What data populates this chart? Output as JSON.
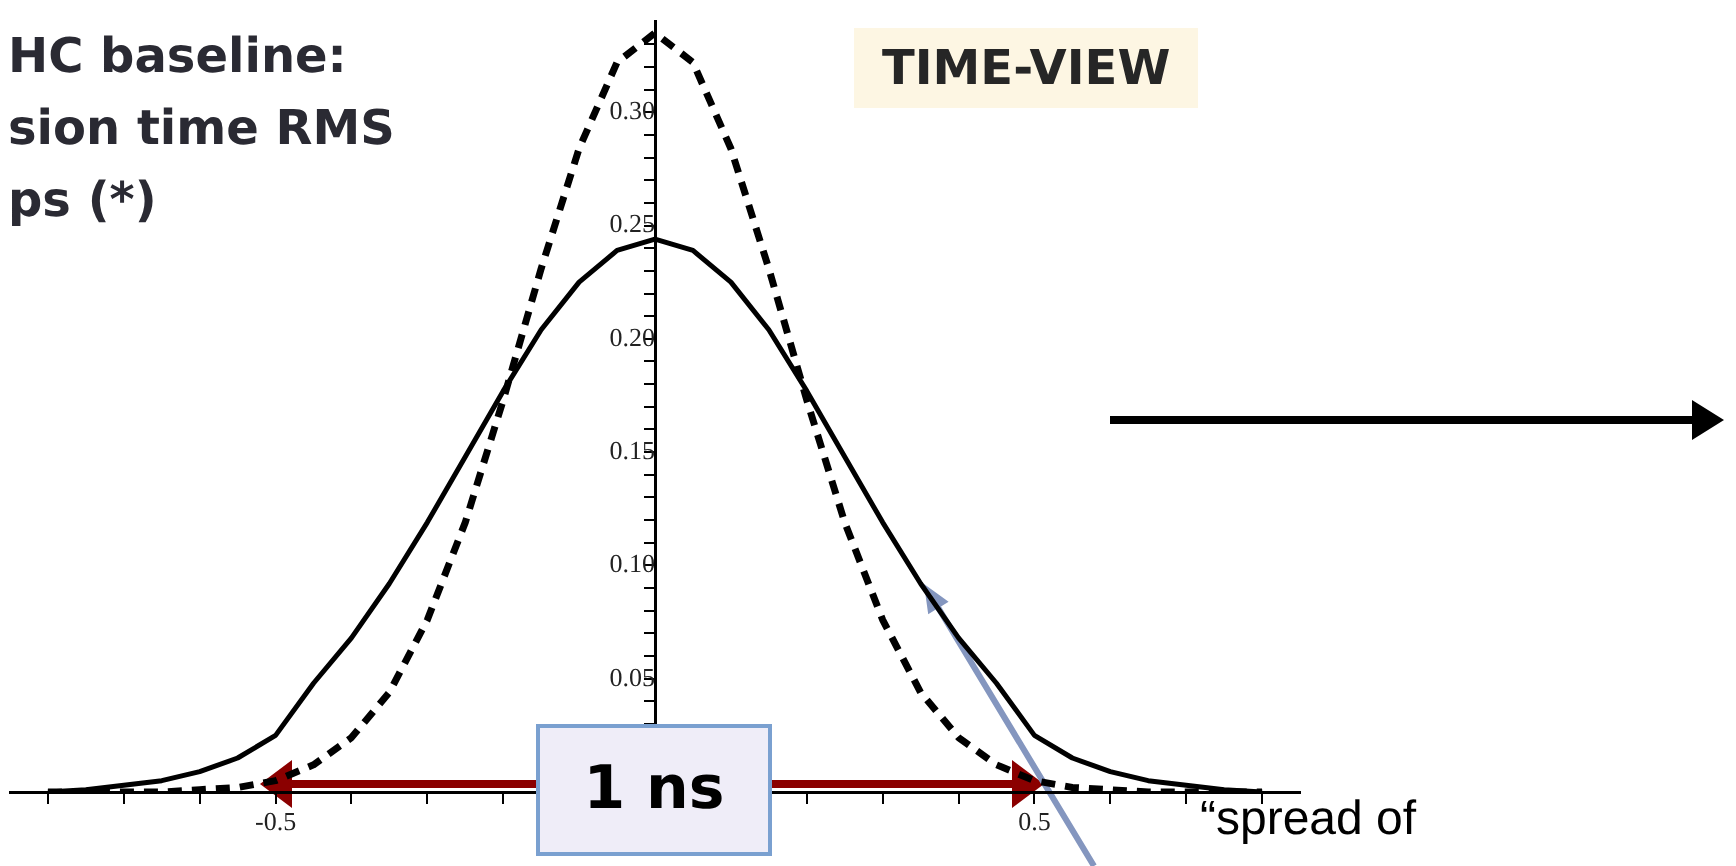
{
  "chart_data": {
    "type": "line",
    "x": [
      -0.8,
      -0.75,
      -0.7,
      -0.65,
      -0.6,
      -0.55,
      -0.5,
      -0.45,
      -0.4,
      -0.35,
      -0.3,
      -0.25,
      -0.2,
      -0.15,
      -0.1,
      -0.05,
      0,
      0.05,
      0.1,
      0.15,
      0.2,
      0.25,
      0.3,
      0.35,
      0.4,
      0.45,
      0.5,
      0.55,
      0.6,
      0.65,
      0.7,
      0.75,
      0.8
    ],
    "series": [
      {
        "color": "#000000",
        "line_style": "solid",
        "values": [
          0,
          0.001,
          0.003,
          0.005,
          0.009,
          0.015,
          0.025,
          0.048,
          0.068,
          0.092,
          0.119,
          0.148,
          0.177,
          0.204,
          0.225,
          0.239,
          0.244,
          0.239,
          0.225,
          0.204,
          0.177,
          0.148,
          0.119,
          0.092,
          0.068,
          0.048,
          0.025,
          0.015,
          0.009,
          0.005,
          0.003,
          0.001,
          0
        ]
      },
      {
        "color": "#000000",
        "line_style": "dashed",
        "values": [
          0,
          0,
          0,
          0,
          0.001,
          0.002,
          0.005,
          0.012,
          0.024,
          0.044,
          0.076,
          0.119,
          0.173,
          0.231,
          0.284,
          0.322,
          0.335,
          0.322,
          0.284,
          0.231,
          0.173,
          0.119,
          0.076,
          0.044,
          0.024,
          0.012,
          0.005,
          0.002,
          0.001,
          0,
          0,
          0,
          0
        ]
      }
    ],
    "xlim": [
      -0.85,
      0.85
    ],
    "xticks": [
      {
        "value": -0.8,
        "label": null
      },
      {
        "value": -0.7,
        "label": null
      },
      {
        "value": -0.6,
        "label": null
      },
      {
        "value": -0.5,
        "label": "-0.5"
      },
      {
        "value": -0.4,
        "label": null
      },
      {
        "value": -0.3,
        "label": null
      },
      {
        "value": -0.2,
        "label": null
      },
      {
        "value": -0.1,
        "label": null
      },
      {
        "value": 0.1,
        "label": null
      },
      {
        "value": 0.2,
        "label": null
      },
      {
        "value": 0.3,
        "label": null
      },
      {
        "value": 0.4,
        "label": null
      },
      {
        "value": 0.5,
        "label": "0.5"
      },
      {
        "value": 0.6,
        "label": null
      },
      {
        "value": 0.7,
        "label": null
      },
      {
        "value": 0.8,
        "label": null
      }
    ],
    "ylim": [
      0,
      0.34
    ],
    "yticks": [
      {
        "value": 0.01,
        "label": null
      },
      {
        "value": 0.02,
        "label": null
      },
      {
        "value": 0.03,
        "label": null
      },
      {
        "value": 0.04,
        "label": null
      },
      {
        "value": 0.05,
        "label": "0.05"
      },
      {
        "value": 0.06,
        "label": null
      },
      {
        "value": 0.07,
        "label": null
      },
      {
        "value": 0.08,
        "label": null
      },
      {
        "value": 0.09,
        "label": null
      },
      {
        "value": 0.1,
        "label": "0.10"
      },
      {
        "value": 0.11,
        "label": null
      },
      {
        "value": 0.12,
        "label": null
      },
      {
        "value": 0.13,
        "label": null
      },
      {
        "value": 0.14,
        "label": null
      },
      {
        "value": 0.15,
        "label": "0.15"
      },
      {
        "value": 0.16,
        "label": null
      },
      {
        "value": 0.17,
        "label": null
      },
      {
        "value": 0.18,
        "label": null
      },
      {
        "value": 0.19,
        "label": null
      },
      {
        "value": 0.2,
        "label": "0.20"
      },
      {
        "value": 0.21,
        "label": null
      },
      {
        "value": 0.22,
        "label": null
      },
      {
        "value": 0.23,
        "label": null
      },
      {
        "value": 0.24,
        "label": null
      },
      {
        "value": 0.25,
        "label": "0.25"
      },
      {
        "value": 0.26,
        "label": null
      },
      {
        "value": 0.27,
        "label": null
      },
      {
        "value": 0.28,
        "label": null
      },
      {
        "value": 0.29,
        "label": null
      },
      {
        "value": 0.3,
        "label": "0.30"
      },
      {
        "value": 0.31,
        "label": null
      },
      {
        "value": 0.32,
        "label": null
      },
      {
        "value": 0.33,
        "label": null
      }
    ],
    "grid": false,
    "legend": false,
    "marker": "none",
    "annotations": [
      "HC baseline:\nsion time RMS\nps (*)",
      "TIME-VIEW",
      "1 ns",
      "“spread of"
    ]
  }
}
